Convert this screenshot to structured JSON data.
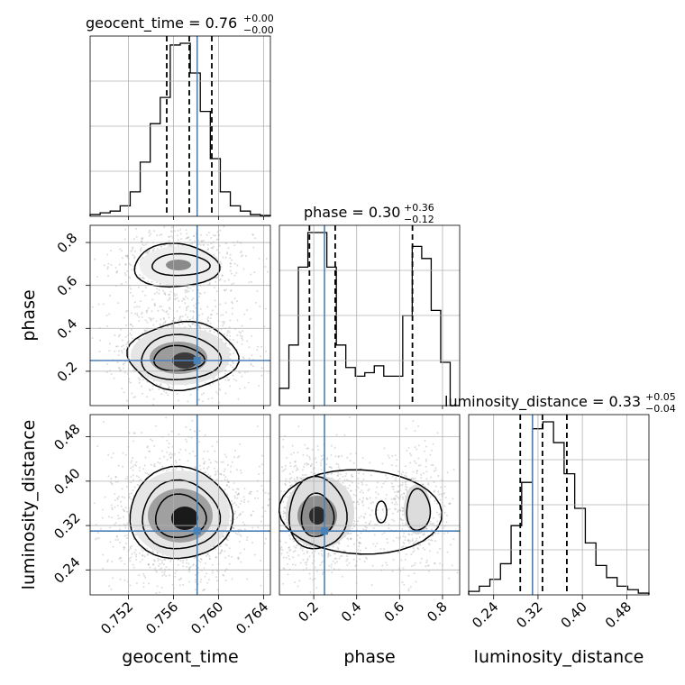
{
  "truth_color": "#4a80b8",
  "hist_color": "#000000",
  "grid_color": "#b0b0b0",
  "chart_data": {
    "type": "corner",
    "parameters": [
      "geocent_time",
      "phase",
      "luminosity_distance"
    ],
    "titles": [
      {
        "text": "geocent_time = 0.76",
        "sup": "+0.00",
        "sub": "−0.00"
      },
      {
        "text": "phase = 0.30",
        "sup": "+0.36",
        "sub": "−0.12"
      },
      {
        "text": "luminosity_distance = 0.33",
        "sup": "+0.05",
        "sub": "−0.04"
      }
    ],
    "ranges": {
      "geocent_time": [
        0.7486,
        0.7646
      ],
      "phase": [
        0.04,
        0.88
      ],
      "luminosity_distance": [
        0.195,
        0.52
      ]
    },
    "ticks": {
      "geocent_time": [
        "0.752",
        "0.756",
        "0.760",
        "0.764"
      ],
      "phase": [
        "0.2",
        "0.4",
        "0.6",
        "0.8"
      ],
      "luminosity_distance": [
        "0.24",
        "0.32",
        "0.40",
        "0.48"
      ]
    },
    "truths": {
      "geocent_time": 0.7581,
      "phase": 0.25,
      "luminosity_distance": 0.31
    },
    "quantiles": {
      "geocent_time": [
        0.7554,
        0.7574,
        0.7594
      ],
      "phase": [
        0.18,
        0.3,
        0.66
      ],
      "luminosity_distance": [
        0.288,
        0.328,
        0.372
      ]
    },
    "histograms": {
      "geocent_time": [
        1,
        2,
        3,
        6,
        14,
        31,
        53,
        68,
        98,
        99,
        82,
        60,
        33,
        14,
        6,
        3,
        1,
        0.5
      ],
      "phase": [
        10,
        35,
        80,
        100,
        100,
        80,
        35,
        22,
        17,
        19,
        23,
        17,
        17,
        52,
        92,
        85,
        55,
        25,
        0
      ],
      "luminosity_distance": [
        2,
        5,
        9,
        18,
        40,
        65,
        96,
        100,
        88,
        70,
        50,
        30,
        17,
        10,
        5,
        3,
        1
      ]
    }
  }
}
